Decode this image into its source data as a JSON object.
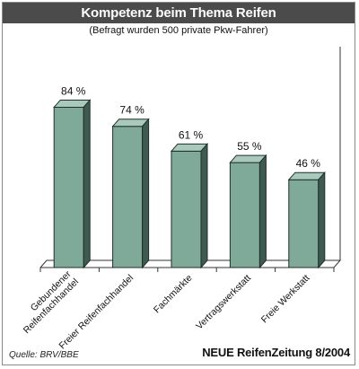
{
  "chart_data": {
    "type": "bar",
    "title": "Kompetenz beim Thema Reifen",
    "subtitle": "(Befragt wurden 500 private Pkw-Fahrer)",
    "categories": [
      [
        "Gebundener",
        "Reifenfachhandel"
      ],
      [
        "Freier Reifenfachhandel"
      ],
      [
        "Fachmärkte"
      ],
      [
        "Vertragswerkstatt"
      ],
      [
        "Freie Werkstatt"
      ]
    ],
    "values": [
      84,
      74,
      61,
      55,
      46
    ],
    "value_labels": [
      "84 %",
      "74 %",
      "61 %",
      "55 %",
      "46 %"
    ],
    "ylim": [
      0,
      100
    ],
    "style": "3d",
    "bar_color": "#7faa9a",
    "bar_top_color": "#a9c9bd",
    "bar_side_color": "#3f5a50",
    "grid": false,
    "legend": "none"
  },
  "footer": {
    "source": "Quelle: BRV/BBE",
    "publisher": "NEUE ReifenZeitung 8/2004"
  }
}
